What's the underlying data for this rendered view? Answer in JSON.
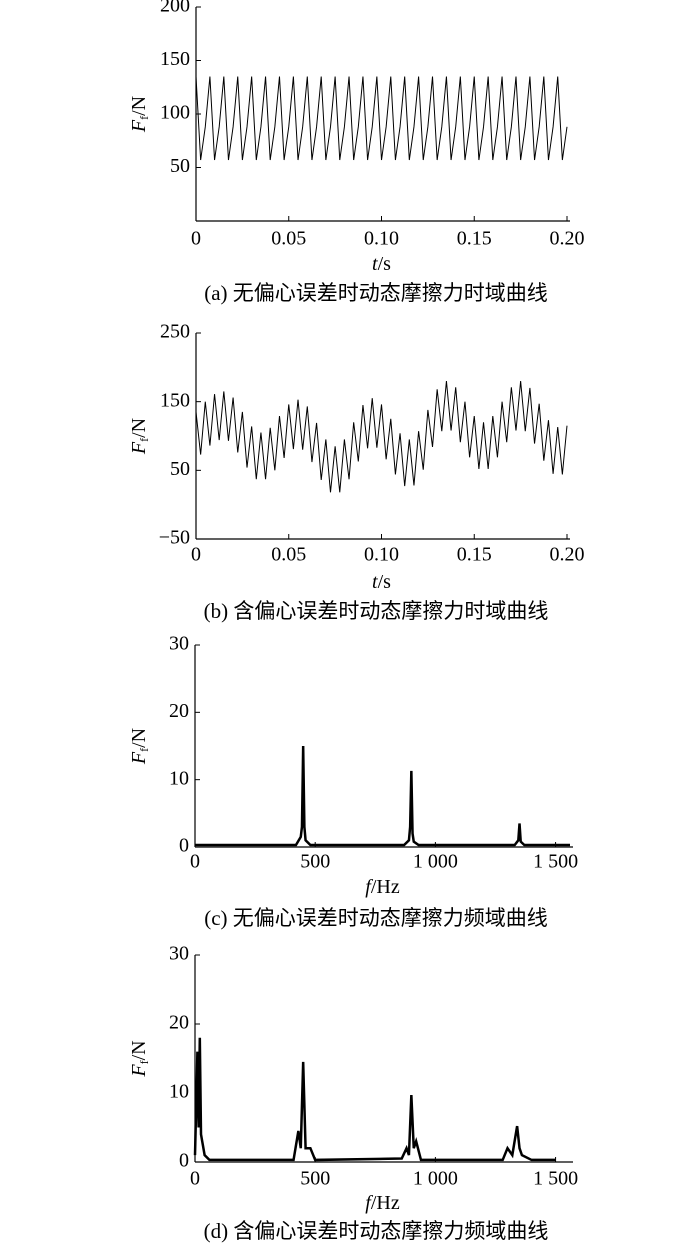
{
  "chart_data": [
    {
      "type": "line",
      "caption": "(a) 无偏心误差时动态摩擦力时域曲线",
      "xlabel": [
        "t",
        "/s"
      ],
      "ylabel": [
        "F",
        "f",
        "/N"
      ],
      "xlim": [
        0,
        0.2
      ],
      "ylim": [
        0,
        200
      ],
      "xticks": [
        0,
        0.05,
        {
          "value": 0.1,
          "label": "0.10"
        },
        0.15,
        {
          "value": 0.2,
          "label": "0.20"
        }
      ],
      "yticks": [
        50,
        100,
        150,
        200
      ],
      "x": [
        0,
        0.0025,
        0.005,
        0.0075,
        0.01,
        0.0125,
        0.015,
        0.0175,
        0.02,
        0.0225,
        0.025,
        0.0275,
        0.03,
        0.0325,
        0.035,
        0.0375,
        0.04,
        0.0425,
        0.045,
        0.0475,
        0.05,
        0.0525,
        0.055,
        0.0575,
        0.06,
        0.0625,
        0.065,
        0.0675,
        0.07,
        0.0725,
        0.075,
        0.0775,
        0.08,
        0.0825,
        0.085,
        0.0875,
        0.09,
        0.0925,
        0.095,
        0.0975,
        0.1,
        0.1025,
        0.105,
        0.1075,
        0.11,
        0.1125,
        0.115,
        0.1175,
        0.12,
        0.1225,
        0.125,
        0.1275,
        0.13,
        0.1325,
        0.135,
        0.1375,
        0.14,
        0.1425,
        0.145,
        0.1475,
        0.15,
        0.1525,
        0.155,
        0.1575,
        0.16,
        0.1625,
        0.165,
        0.1675,
        0.17,
        0.1725,
        0.175,
        0.1775,
        0.18,
        0.1825,
        0.185,
        0.1875,
        0.19,
        0.1925,
        0.195,
        0.1975,
        0.2
      ],
      "series": [
        {
          "color": "#000000",
          "values": [
            135,
            57,
            88,
            135,
            57,
            88,
            135,
            57,
            88,
            135,
            57,
            88,
            135,
            57,
            88,
            135,
            57,
            88,
            135,
            57,
            88,
            135,
            57,
            88,
            135,
            57,
            88,
            135,
            57,
            88,
            135,
            57,
            88,
            135,
            57,
            88,
            135,
            57,
            88,
            135,
            57,
            88,
            135,
            57,
            88,
            135,
            57,
            88,
            135,
            57,
            88,
            135,
            57,
            88,
            135,
            57,
            88,
            135,
            57,
            88,
            135,
            57,
            88,
            135,
            57,
            88,
            135,
            57,
            88,
            135,
            57,
            88,
            135,
            57,
            88,
            135,
            57,
            88,
            135,
            57,
            88
          ]
        }
      ]
    },
    {
      "type": "line",
      "caption": "(b) 含偏心误差时动态摩擦力时域曲线",
      "xlabel": [
        "t",
        "/s"
      ],
      "ylabel": [
        "F",
        "f",
        "/N"
      ],
      "xlim": [
        0,
        0.2
      ],
      "ylim": [
        -50,
        250
      ],
      "xticks": [
        0,
        0.05,
        {
          "value": 0.1,
          "label": "0.10"
        },
        0.15,
        {
          "value": 0.2,
          "label": "0.20"
        }
      ],
      "yticks": [
        {
          "value": -50,
          "label": "−50"
        },
        50,
        150,
        250
      ],
      "x": [
        0,
        0.0025,
        0.005,
        0.0075,
        0.01,
        0.0125,
        0.015,
        0.0175,
        0.02,
        0.0225,
        0.025,
        0.0275,
        0.03,
        0.0325,
        0.035,
        0.0375,
        0.04,
        0.0425,
        0.045,
        0.0475,
        0.05,
        0.0525,
        0.055,
        0.0575,
        0.06,
        0.0625,
        0.065,
        0.0675,
        0.07,
        0.0725,
        0.075,
        0.0775,
        0.08,
        0.0825,
        0.085,
        0.0875,
        0.09,
        0.0925,
        0.095,
        0.0975,
        0.1,
        0.1025,
        0.105,
        0.1075,
        0.11,
        0.1125,
        0.115,
        0.1175,
        0.12,
        0.1225,
        0.125,
        0.1275,
        0.13,
        0.1325,
        0.135,
        0.1375,
        0.14,
        0.1425,
        0.145,
        0.1475,
        0.15,
        0.1525,
        0.155,
        0.1575,
        0.16,
        0.1625,
        0.165,
        0.1675,
        0.17,
        0.1725,
        0.175,
        0.1775,
        0.18,
        0.1825,
        0.185,
        0.1875,
        0.19,
        0.1925,
        0.195,
        0.1975,
        0.2
      ],
      "series": [
        {
          "color": "#000000",
          "values": [
            135,
            73,
            150,
            86,
            161,
            94,
            165,
            93,
            156,
            76,
            135,
            54,
            114,
            37,
            105,
            37,
            112,
            50,
            129,
            68,
            146,
            81,
            153,
            80,
            143,
            62,
            119,
            36,
            95,
            18,
            85,
            18,
            95,
            37,
            120,
            63,
            145,
            82,
            155,
            83,
            146,
            66,
            125,
            44,
            104,
            27,
            95,
            28,
            107,
            51,
            138,
            84,
            168,
            107,
            180,
            108,
            171,
            91,
            150,
            69,
            129,
            52,
            120,
            52,
            129,
            69,
            150,
            91,
            171,
            108,
            180,
            107,
            170,
            89,
            147,
            64,
            123,
            45,
            113,
            44,
            115
          ]
        }
      ]
    },
    {
      "type": "line",
      "caption": "(c) 无偏心误差时动态摩擦力频域曲线",
      "xlabel": [
        "f",
        "/Hz"
      ],
      "ylabel": [
        "F",
        "f",
        "/N"
      ],
      "xlim": [
        0,
        1560
      ],
      "ylim": [
        0,
        30
      ],
      "xticks": [
        0,
        500,
        {
          "value": 1000,
          "label": "1 000"
        },
        {
          "value": 1500,
          "label": "1 500"
        }
      ],
      "yticks": [
        0,
        10,
        20,
        30
      ],
      "x": [
        0,
        420,
        440,
        445,
        450,
        455,
        460,
        480,
        870,
        890,
        895,
        900,
        905,
        910,
        930,
        1330,
        1345,
        1350,
        1355,
        1370,
        1560
      ],
      "series": [
        {
          "color": "#000000",
          "values": [
            0.3,
            0.3,
            1.5,
            3,
            15,
            3,
            1,
            0.3,
            0.3,
            1,
            3,
            11.3,
            2,
            0.8,
            0.3,
            0.3,
            1,
            3.5,
            0.8,
            0.3,
            0.3
          ]
        }
      ]
    },
    {
      "type": "line",
      "caption": "(d) 含偏心误差时动态摩擦力频域曲线",
      "xlabel": [
        "f",
        "/Hz"
      ],
      "ylabel": [
        "F",
        "f",
        "/N"
      ],
      "xlim": [
        0,
        1560
      ],
      "ylim": [
        0,
        30
      ],
      "xticks": [
        0,
        500,
        {
          "value": 1000,
          "label": "1 000"
        },
        {
          "value": 1500,
          "label": "1 500"
        }
      ],
      "yticks": [
        0,
        10,
        20,
        30
      ],
      "x": [
        0,
        5,
        10,
        15,
        20,
        25,
        30,
        40,
        60,
        410,
        430,
        440,
        450,
        460,
        480,
        500,
        860,
        880,
        890,
        900,
        910,
        920,
        940,
        1280,
        1300,
        1320,
        1340,
        1350,
        1360,
        1400,
        1500
      ],
      "series": [
        {
          "color": "#000000",
          "values": [
            1,
            8,
            16,
            5,
            18,
            4,
            3,
            1,
            0.3,
            0.3,
            4.5,
            2,
            14.5,
            2,
            2,
            0.3,
            0.5,
            2,
            1,
            9.7,
            2,
            3,
            0.3,
            0.3,
            2,
            1,
            5.2,
            2,
            1,
            0.3,
            0.3
          ]
        }
      ]
    }
  ]
}
